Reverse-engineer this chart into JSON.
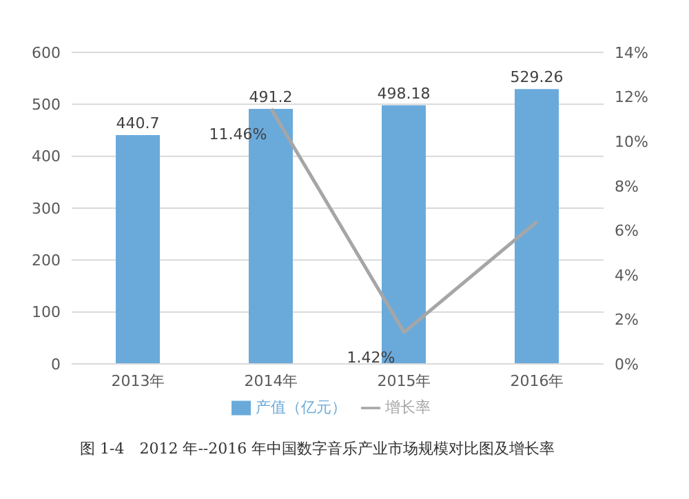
{
  "chart_data": {
    "type": "bar",
    "categories": [
      "2013年",
      "2014年",
      "2015年",
      "2016年"
    ],
    "series": [
      {
        "name": "产值（亿元）",
        "color": "#6aaadb",
        "values": [
          440.7,
          491.2,
          498.18,
          529.26
        ]
      },
      {
        "name": "增长率",
        "type": "line",
        "axis": "y2",
        "color": "#a6a6a6",
        "values": [
          null,
          11.46,
          1.42,
          6.4
        ],
        "value_labels": [
          null,
          "11.46%",
          "1.42%",
          null
        ]
      }
    ],
    "data_labels": true,
    "ylim": [
      0,
      600
    ],
    "yticks": [
      0,
      100,
      200,
      300,
      400,
      500,
      600
    ],
    "y2lim": [
      0,
      14
    ],
    "y2ticks": [
      {
        "value": 0,
        "label": "0%"
      },
      {
        "value": 2,
        "label": "2%"
      },
      {
        "value": 4,
        "label": "4%"
      },
      {
        "value": 6,
        "label": "6%"
      },
      {
        "value": 8,
        "label": "8%"
      },
      {
        "value": 10,
        "label": "10%"
      },
      {
        "value": 12,
        "label": "12%"
      },
      {
        "value": 14,
        "label": "14%"
      }
    ],
    "grid": "y",
    "legend": "bottom",
    "marker": "none",
    "line_style": "solid",
    "annotations": [
      "图 1-4　2012 年--2016 年中国数字音乐产业市场规模对比图及增长率"
    ]
  }
}
